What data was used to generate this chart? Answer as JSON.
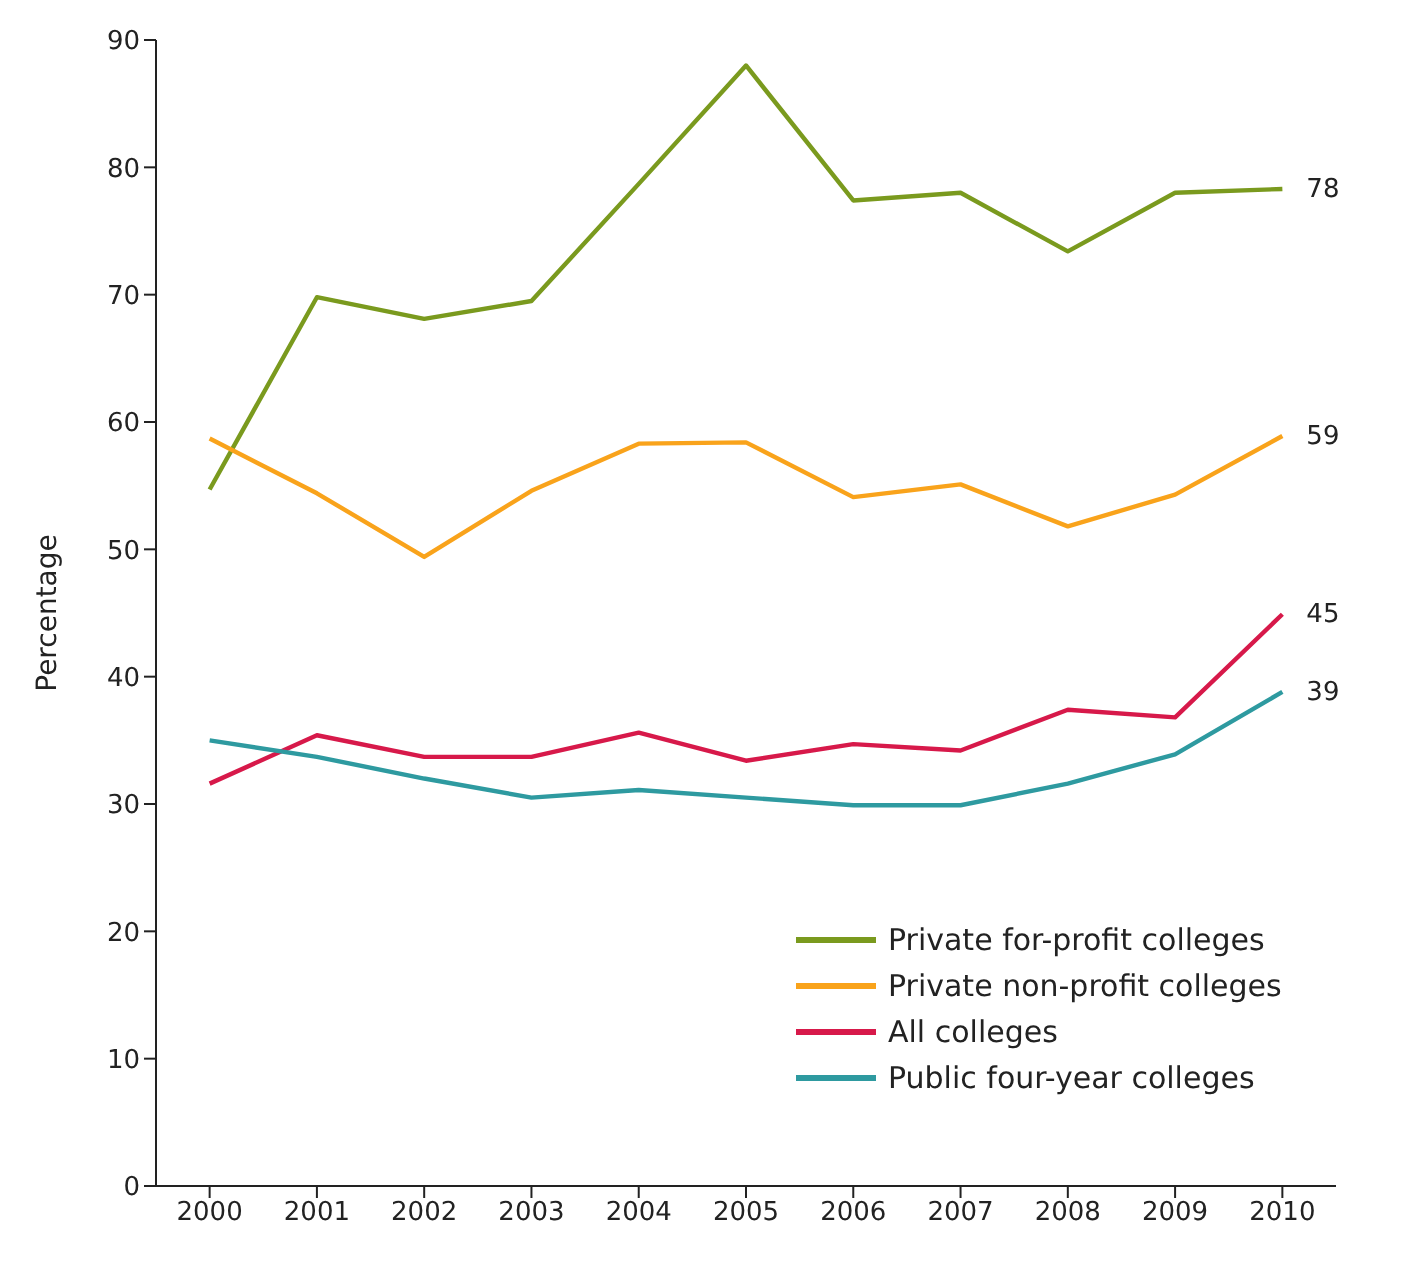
{
  "chart_data": {
    "type": "line",
    "ylabel": "Percentage",
    "categories": [
      "2000",
      "2001",
      "2002",
      "2003",
      "2004",
      "2005",
      "2006",
      "2007",
      "2008",
      "2009",
      "2010"
    ],
    "series": [
      {
        "name": "Private for-profit colleges",
        "color": "#7a9a1e",
        "values": [
          54.7,
          69.8,
          68.1,
          69.5,
          78.7,
          88,
          77.4,
          78,
          73.4,
          78,
          78.3
        ],
        "value_labels": [
          null,
          null,
          null,
          null,
          null,
          null,
          null,
          null,
          null,
          null,
          "78"
        ]
      },
      {
        "name": "Private non-profit colleges",
        "color": "#f9a31b",
        "values": [
          58.7,
          54.4,
          49.4,
          54.6,
          58.3,
          58.4,
          54.1,
          55.1,
          51.8,
          54.3,
          58.9
        ],
        "value_labels": [
          null,
          null,
          null,
          null,
          null,
          null,
          null,
          null,
          null,
          null,
          "59"
        ]
      },
      {
        "name": "All colleges",
        "color": "#d7194a",
        "values": [
          31.6,
          35.4,
          33.7,
          33.7,
          35.6,
          33.4,
          34.7,
          34.2,
          37.4,
          36.8,
          44.9
        ],
        "value_labels": [
          null,
          null,
          null,
          null,
          null,
          null,
          null,
          null,
          null,
          null,
          "45"
        ]
      },
      {
        "name": "Public four-year colleges",
        "color": "#2e9aa0",
        "values": [
          35,
          33.7,
          32,
          30.5,
          31.1,
          30.5,
          29.9,
          29.9,
          31.6,
          33.9,
          38.8
        ],
        "value_labels": [
          null,
          null,
          null,
          null,
          null,
          null,
          null,
          null,
          null,
          null,
          "39"
        ]
      }
    ],
    "ylim": [
      0,
      90
    ],
    "yticks": [
      0,
      10,
      20,
      30,
      40,
      50,
      60,
      70,
      80,
      90
    ],
    "grid": false,
    "legend": "bottom right",
    "marker": "none",
    "line_style": "solid"
  }
}
